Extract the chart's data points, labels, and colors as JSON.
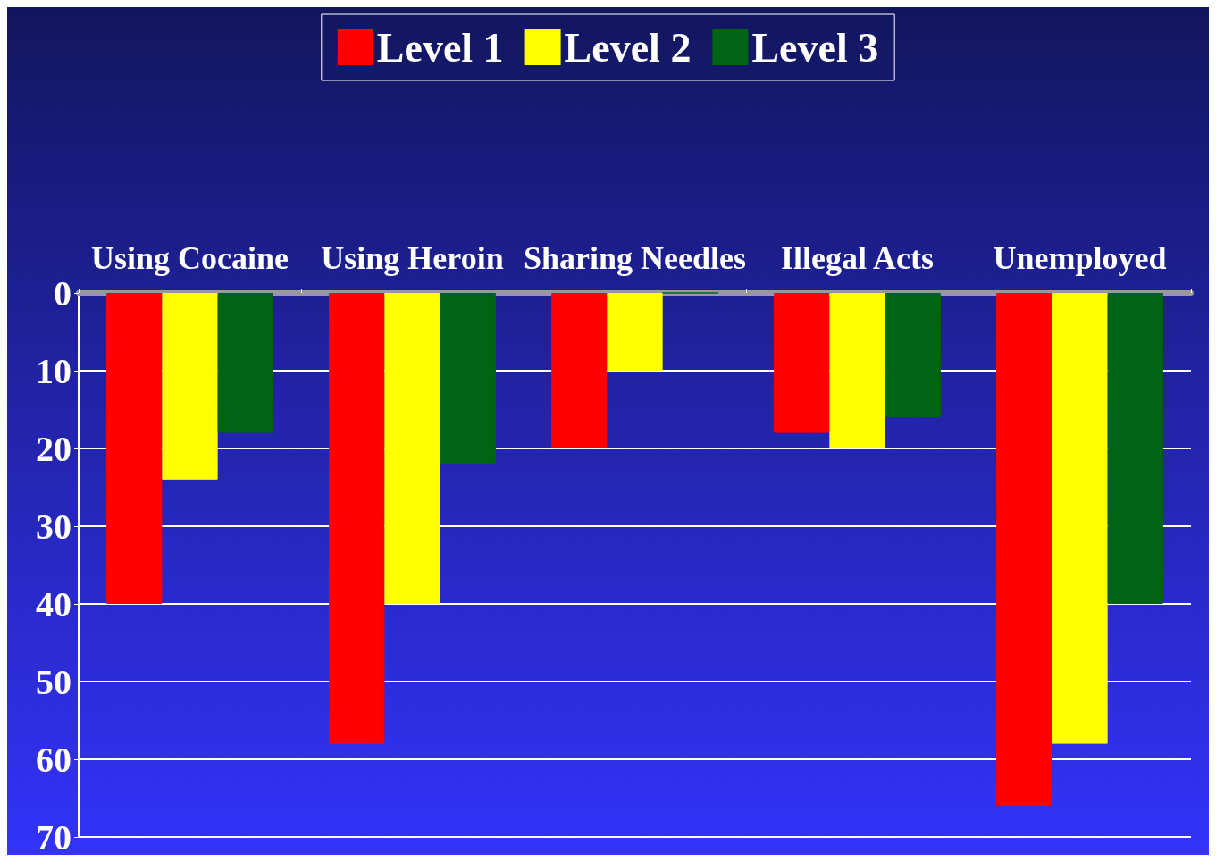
{
  "chart_data": {
    "type": "bar",
    "categories": [
      "Using Cocaine",
      "Using Heroin",
      "Sharing Needles",
      "Illegal Acts",
      "Unemployed"
    ],
    "series": [
      {
        "name": "Level 1",
        "color": "#ff0000",
        "values": [
          40,
          58,
          20,
          18,
          66
        ]
      },
      {
        "name": "Level 2",
        "color": "#ffff00",
        "values": [
          24,
          40,
          10,
          20,
          58
        ]
      },
      {
        "name": "Level 3",
        "color": "#006414",
        "values": [
          18,
          22,
          0,
          16,
          40
        ]
      }
    ],
    "ylim": [
      70,
      0
    ],
    "yticks": [
      0,
      10,
      20,
      30,
      40,
      50,
      60,
      70
    ],
    "grid": "y",
    "legend": "top"
  }
}
